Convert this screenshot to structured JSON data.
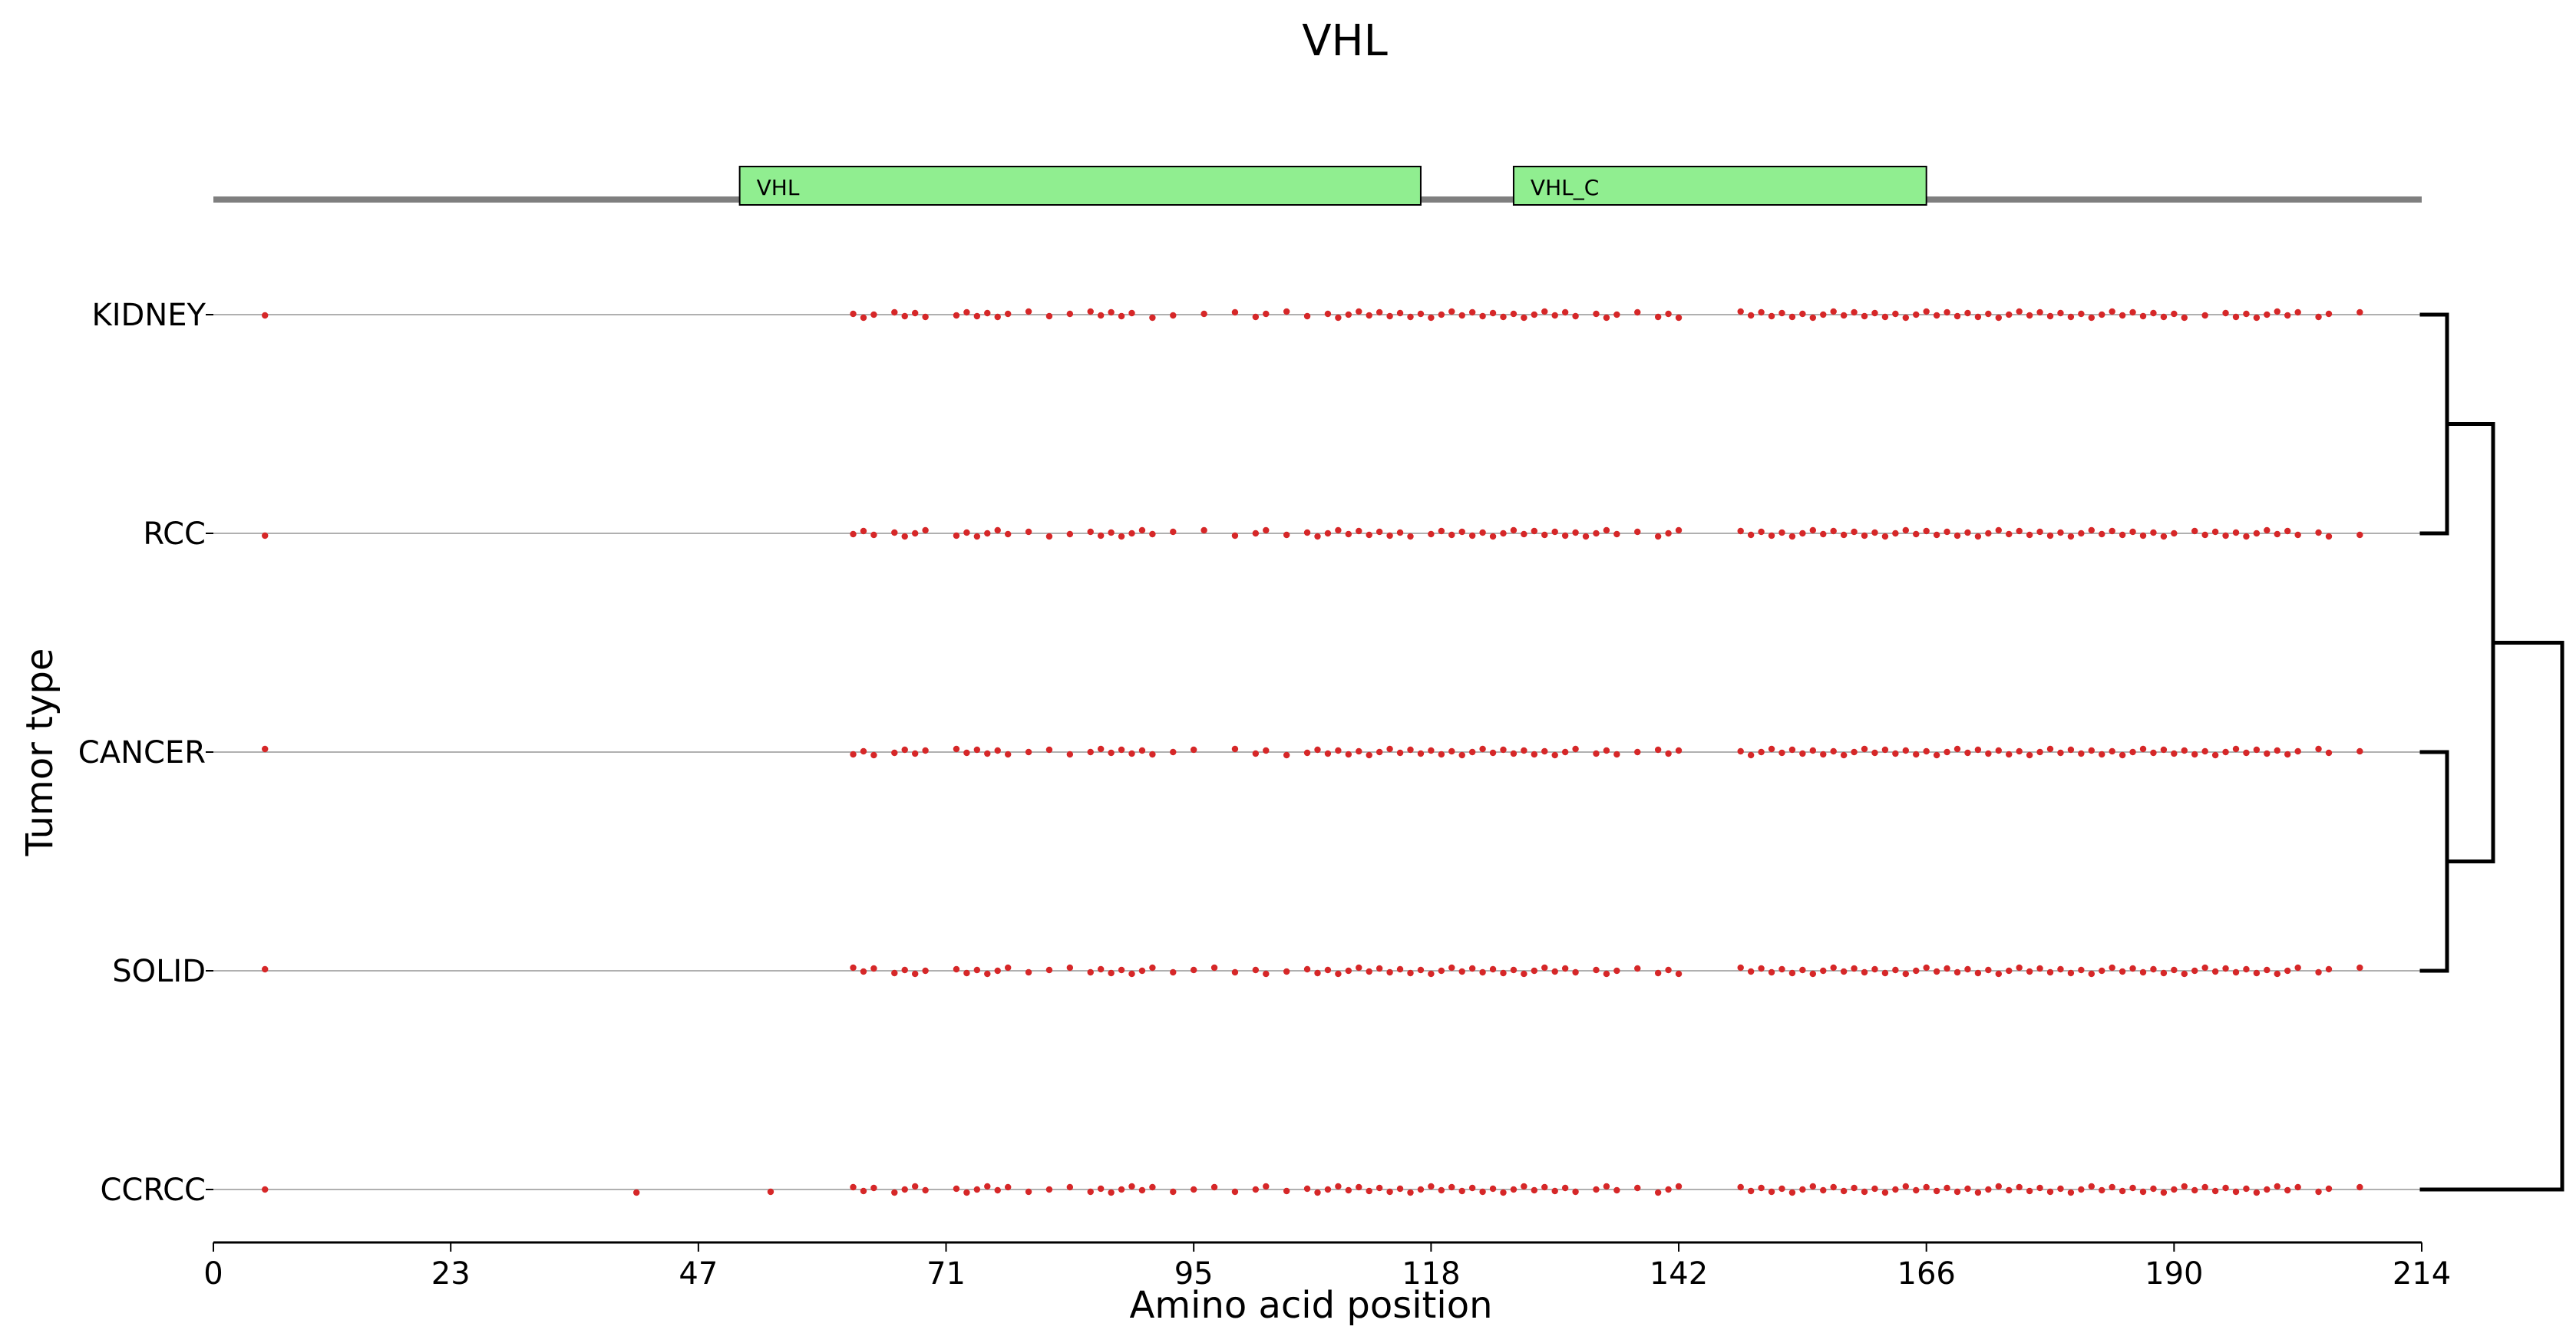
{
  "chart_data": {
    "type": "scatter",
    "title": "VHL",
    "xlabel": "Amino acid position",
    "ylabel": "Tumor type",
    "xlim": [
      0,
      214
    ],
    "xticks": [
      "0",
      "23",
      "47",
      "71",
      "95",
      "118",
      "142",
      "166",
      "190",
      "214"
    ],
    "protein_track": {
      "length": 214,
      "domains": [
        {
          "name": "VHL",
          "start": 51,
          "end": 117,
          "color": "#90ee90"
        },
        {
          "name": "VHL_C",
          "start": 126,
          "end": 166,
          "color": "#90ee90"
        }
      ]
    },
    "categories": [
      "KIDNEY",
      "RCC",
      "CANCER",
      "SOLID",
      "CCRCC"
    ],
    "series": [
      {
        "name": "KIDNEY",
        "x": [
          5,
          62,
          63,
          64,
          66,
          67,
          68,
          69,
          72,
          73,
          74,
          75,
          76,
          77,
          79,
          81,
          83,
          85,
          86,
          87,
          88,
          89,
          91,
          93,
          96,
          99,
          101,
          102,
          104,
          106,
          108,
          109,
          110,
          111,
          112,
          113,
          114,
          115,
          116,
          117,
          118,
          119,
          120,
          121,
          122,
          123,
          124,
          125,
          126,
          127,
          128,
          129,
          130,
          131,
          132,
          134,
          135,
          136,
          138,
          140,
          141,
          142,
          148,
          149,
          150,
          151,
          152,
          153,
          154,
          155,
          156,
          157,
          158,
          159,
          160,
          161,
          162,
          163,
          164,
          165,
          166,
          167,
          168,
          169,
          170,
          171,
          172,
          173,
          174,
          175,
          176,
          177,
          178,
          179,
          180,
          181,
          182,
          183,
          184,
          185,
          186,
          187,
          188,
          189,
          190,
          191,
          193,
          195,
          196,
          197,
          198,
          199,
          200,
          201,
          202,
          204,
          205,
          208
        ]
      },
      {
        "name": "RCC",
        "x": [
          5,
          62,
          63,
          64,
          66,
          67,
          68,
          69,
          72,
          73,
          74,
          75,
          76,
          77,
          79,
          81,
          83,
          85,
          86,
          87,
          88,
          89,
          90,
          91,
          93,
          96,
          99,
          101,
          102,
          104,
          106,
          107,
          108,
          109,
          110,
          111,
          112,
          113,
          114,
          115,
          116,
          118,
          119,
          120,
          121,
          122,
          123,
          124,
          125,
          126,
          127,
          128,
          129,
          130,
          131,
          132,
          133,
          134,
          135,
          136,
          138,
          140,
          141,
          142,
          148,
          149,
          150,
          151,
          152,
          153,
          154,
          155,
          156,
          157,
          158,
          159,
          160,
          161,
          162,
          163,
          164,
          165,
          166,
          167,
          168,
          169,
          170,
          171,
          172,
          173,
          174,
          175,
          176,
          177,
          178,
          179,
          180,
          181,
          182,
          183,
          184,
          185,
          186,
          187,
          188,
          189,
          190,
          192,
          193,
          194,
          195,
          196,
          197,
          198,
          199,
          200,
          201,
          202,
          204,
          205,
          208
        ]
      },
      {
        "name": "CANCER",
        "x": [
          5,
          62,
          63,
          64,
          66,
          67,
          68,
          69,
          72,
          73,
          74,
          75,
          76,
          77,
          79,
          81,
          83,
          85,
          86,
          87,
          88,
          89,
          90,
          91,
          93,
          95,
          99,
          101,
          102,
          104,
          106,
          107,
          108,
          109,
          110,
          111,
          112,
          113,
          114,
          115,
          116,
          117,
          118,
          119,
          120,
          121,
          122,
          123,
          124,
          125,
          126,
          127,
          128,
          129,
          130,
          131,
          132,
          134,
          135,
          136,
          138,
          140,
          141,
          142,
          148,
          149,
          150,
          151,
          152,
          153,
          154,
          155,
          156,
          157,
          158,
          159,
          160,
          161,
          162,
          163,
          164,
          165,
          166,
          167,
          168,
          169,
          170,
          171,
          172,
          173,
          174,
          175,
          176,
          177,
          178,
          179,
          180,
          181,
          182,
          183,
          184,
          185,
          186,
          187,
          188,
          189,
          190,
          191,
          192,
          193,
          194,
          195,
          196,
          197,
          198,
          199,
          200,
          201,
          202,
          204,
          205,
          208
        ]
      },
      {
        "name": "SOLID",
        "x": [
          5,
          62,
          63,
          64,
          66,
          67,
          68,
          69,
          72,
          73,
          74,
          75,
          76,
          77,
          79,
          81,
          83,
          85,
          86,
          87,
          88,
          89,
          90,
          91,
          93,
          95,
          97,
          99,
          101,
          102,
          104,
          106,
          107,
          108,
          109,
          110,
          111,
          112,
          113,
          114,
          115,
          116,
          117,
          118,
          119,
          120,
          121,
          122,
          123,
          124,
          125,
          126,
          127,
          128,
          129,
          130,
          131,
          132,
          134,
          135,
          136,
          138,
          140,
          141,
          142,
          148,
          149,
          150,
          151,
          152,
          153,
          154,
          155,
          156,
          157,
          158,
          159,
          160,
          161,
          162,
          163,
          164,
          165,
          166,
          167,
          168,
          169,
          170,
          171,
          172,
          173,
          174,
          175,
          176,
          177,
          178,
          179,
          180,
          181,
          182,
          183,
          184,
          185,
          186,
          187,
          188,
          189,
          190,
          191,
          192,
          193,
          194,
          195,
          196,
          197,
          198,
          199,
          200,
          201,
          202,
          204,
          205,
          208
        ]
      },
      {
        "name": "CCRCC",
        "x": [
          5,
          41,
          54,
          62,
          63,
          64,
          66,
          67,
          68,
          69,
          72,
          73,
          74,
          75,
          76,
          77,
          79,
          81,
          83,
          85,
          86,
          87,
          88,
          89,
          90,
          91,
          93,
          95,
          97,
          99,
          101,
          102,
          104,
          106,
          107,
          108,
          109,
          110,
          111,
          112,
          113,
          114,
          115,
          116,
          117,
          118,
          119,
          120,
          121,
          122,
          123,
          124,
          125,
          126,
          127,
          128,
          129,
          130,
          131,
          132,
          134,
          135,
          136,
          138,
          140,
          141,
          142,
          148,
          149,
          150,
          151,
          152,
          153,
          154,
          155,
          156,
          157,
          158,
          159,
          160,
          161,
          162,
          163,
          164,
          165,
          166,
          167,
          168,
          169,
          170,
          171,
          172,
          173,
          174,
          175,
          176,
          177,
          178,
          179,
          180,
          181,
          182,
          183,
          184,
          185,
          186,
          187,
          188,
          189,
          190,
          191,
          192,
          193,
          194,
          195,
          196,
          197,
          198,
          199,
          200,
          201,
          202,
          204,
          205,
          208
        ]
      }
    ],
    "dendrogram": {
      "links": [
        {
          "left": [
            "KIDNEY"
          ],
          "right": [
            "RCC"
          ]
        },
        {
          "left": [
            "CANCER"
          ],
          "right": [
            "SOLID"
          ]
        },
        {
          "left": [
            "KIDNEY",
            "RCC"
          ],
          "right": [
            "CANCER",
            "SOLID"
          ]
        },
        {
          "left": [
            "KIDNEY",
            "RCC",
            "CANCER",
            "SOLID"
          ],
          "right": [
            "CCRCC"
          ]
        }
      ]
    },
    "colors": {
      "point": "#d62728",
      "backbone": "#7f7f7f",
      "row_line": "#b0b0b0",
      "domain_fill": "#90ee90",
      "dendrogram": "#000000"
    },
    "grid": false,
    "legend": "none"
  }
}
